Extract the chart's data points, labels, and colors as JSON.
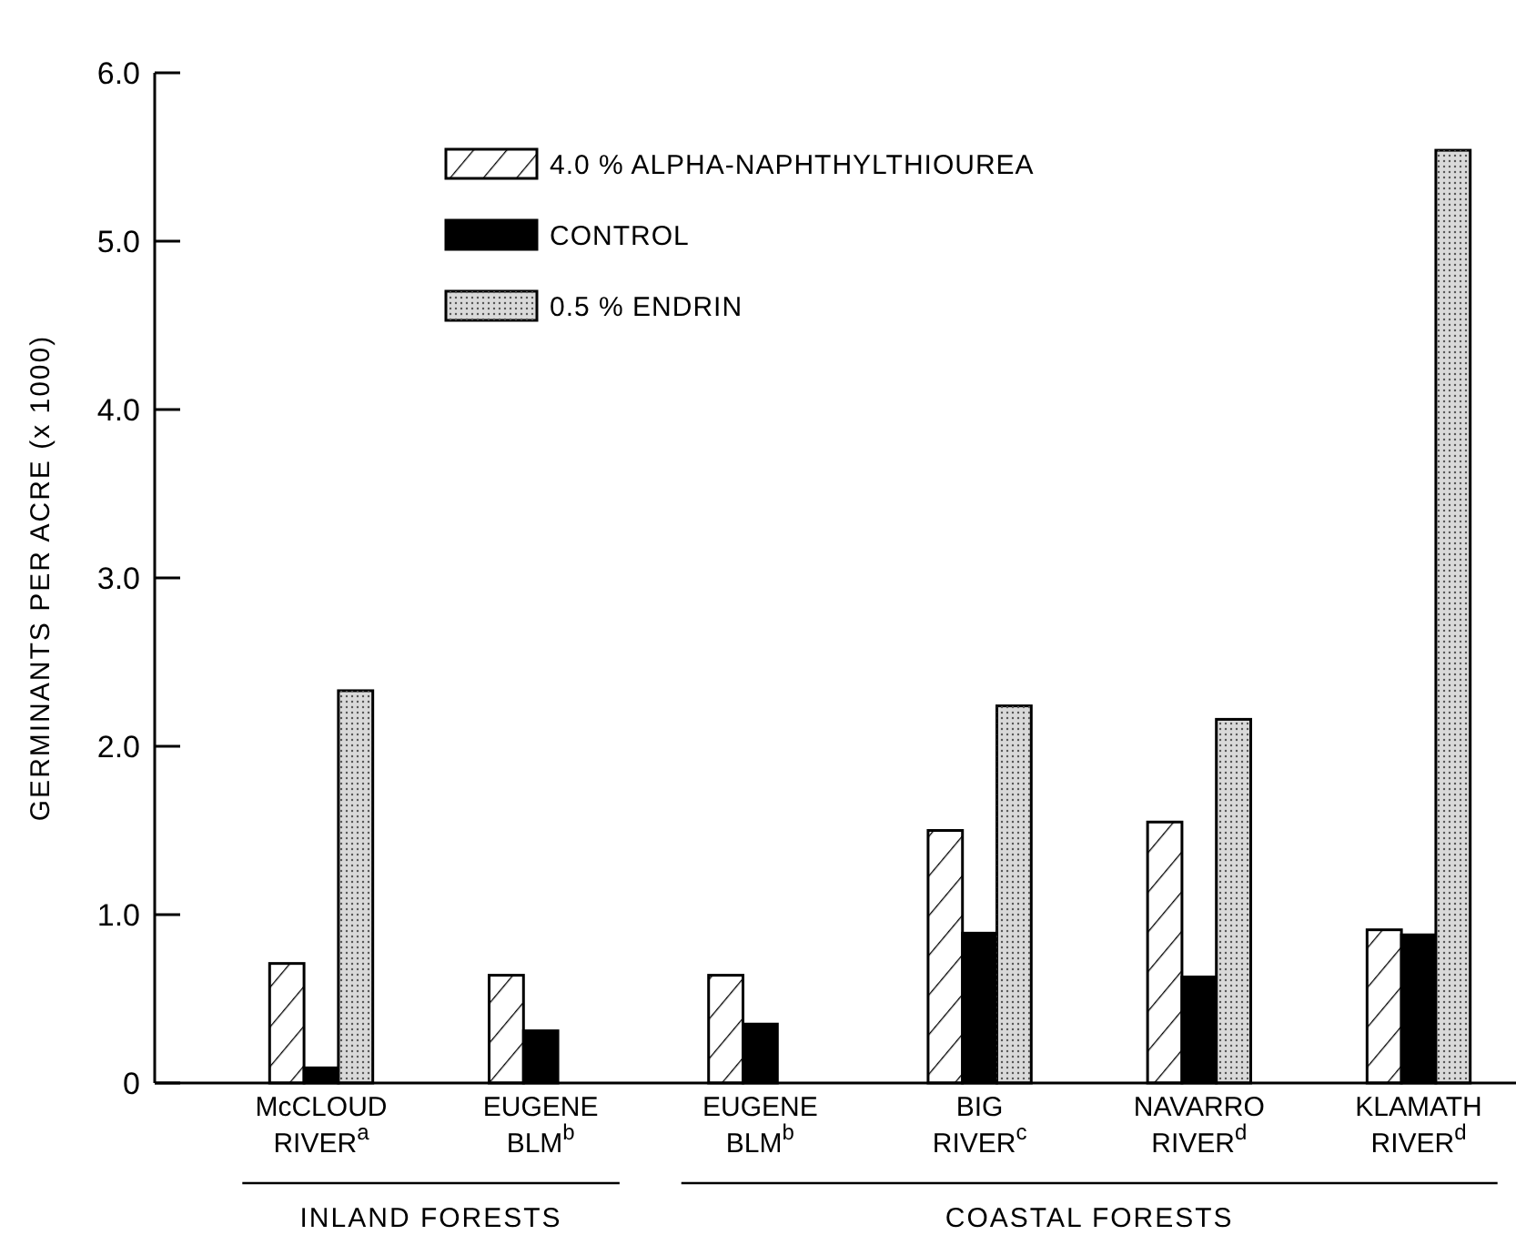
{
  "chart_data": {
    "type": "bar",
    "ylabel": "GERMINANTS  PER ACRE (x 1000)",
    "categories": [
      "McCLOUD\nRIVER$^{a}$",
      "EUGENE\nBLM$^{b}$",
      "EUGENE\nBLM$^{b}$",
      "BIG\nRIVER$^{c}$",
      "NAVARRO\nRIVER$^{d}$",
      "KLAMATH\nRIVER$^{d}$"
    ],
    "series": [
      {
        "name": "4.0 % ALPHA-NAPHTHYLTHIOUREA",
        "color": "#ffffff",
        "values": [
          0.71,
          0.64,
          0.64,
          1.5,
          1.55,
          0.91
        ]
      },
      {
        "name": "CONTROL",
        "color": "#000000",
        "values": [
          0.09,
          0.31,
          0.35,
          0.89,
          0.63,
          0.88
        ]
      },
      {
        "name": "0.5 % ENDRIN",
        "color": "#d9d9d9",
        "values": [
          2.33,
          null,
          null,
          2.24,
          2.16,
          5.54
        ]
      }
    ],
    "ylim": [
      0,
      6
    ],
    "yticks": [
      0,
      {
        "value": 1,
        "label": "1.0"
      },
      {
        "value": 2,
        "label": "2.0"
      },
      {
        "value": 3,
        "label": "3.0"
      },
      {
        "value": 4,
        "label": "4.0"
      },
      {
        "value": 5,
        "label": "5.0"
      },
      {
        "value": 6,
        "label": "6.0"
      }
    ],
    "annotations": [
      "INLAND FORESTS",
      "COASTAL FORESTS"
    ],
    "legend": "top",
    "grid": false
  }
}
